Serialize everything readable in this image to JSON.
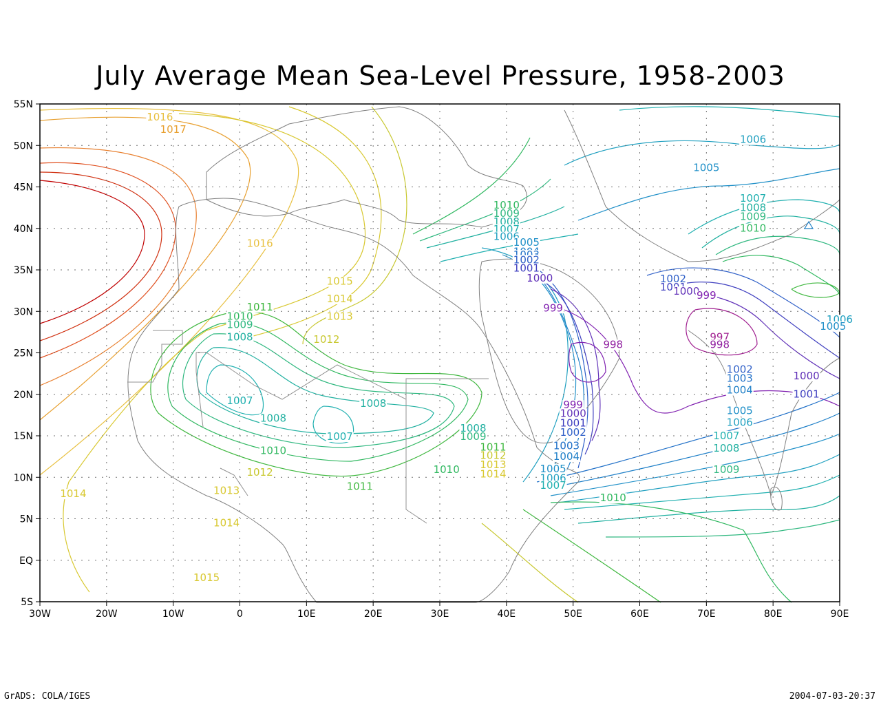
{
  "title": "July Average Mean Sea-Level Pressure, 1958-2003",
  "footer": {
    "left": "GrADS: COLA/IGES",
    "right": "2004-07-03-20:37"
  },
  "chart_data": {
    "type": "contour",
    "xlim": [
      -30,
      90
    ],
    "ylim": [
      -5,
      55
    ],
    "xticks": [
      "30W",
      "20W",
      "10W",
      "0",
      "10E",
      "20E",
      "30E",
      "40E",
      "50E",
      "60E",
      "70E",
      "80E",
      "90E"
    ],
    "xtick_values": [
      -30,
      -20,
      -10,
      0,
      10,
      20,
      30,
      40,
      50,
      60,
      70,
      80,
      90
    ],
    "yticks": [
      "5S",
      "EQ",
      "5N",
      "10N",
      "15N",
      "20N",
      "25N",
      "30N",
      "35N",
      "40N",
      "45N",
      "50N",
      "55N"
    ],
    "ytick_values": [
      -5,
      0,
      5,
      10,
      15,
      20,
      25,
      30,
      35,
      40,
      45,
      50,
      55
    ],
    "grid": true,
    "contours": [
      {
        "label": "1016",
        "lon": -12,
        "lat": 53,
        "color": "#e8c040"
      },
      {
        "label": "1017",
        "lon": -10,
        "lat": 51.5,
        "color": "#e8a030"
      },
      {
        "label": "1016",
        "lon": 3,
        "lat": 37.8,
        "color": "#e8c040"
      },
      {
        "label": "1015",
        "lon": 15,
        "lat": 33.2,
        "color": "#d8c830"
      },
      {
        "label": "1014",
        "lon": 15,
        "lat": 31.1,
        "color": "#d8c830"
      },
      {
        "label": "1013",
        "lon": 15,
        "lat": 29,
        "color": "#d8c830"
      },
      {
        "label": "1012",
        "lon": 13,
        "lat": 26.2,
        "color": "#c8c830"
      },
      {
        "label": "1011",
        "lon": 3,
        "lat": 30.1,
        "color": "#40b840"
      },
      {
        "label": "1010",
        "lon": 0,
        "lat": 29,
        "color": "#30b860"
      },
      {
        "label": "1009",
        "lon": 0,
        "lat": 28,
        "color": "#30b880"
      },
      {
        "label": "1008",
        "lon": 0,
        "lat": 26.5,
        "color": "#20b0a0"
      },
      {
        "label": "1007",
        "lon": 0,
        "lat": 18.8,
        "color": "#20b0b0"
      },
      {
        "label": "1008",
        "lon": 5,
        "lat": 16.7,
        "color": "#20b0a0"
      },
      {
        "label": "1008",
        "lon": 20,
        "lat": 18.5,
        "color": "#20b0a0"
      },
      {
        "label": "1007",
        "lon": 15,
        "lat": 14.5,
        "color": "#20b0b0"
      },
      {
        "label": "1010",
        "lon": 5,
        "lat": 12.8,
        "color": "#30b860"
      },
      {
        "label": "1012",
        "lon": 3,
        "lat": 10.2,
        "color": "#c8c830"
      },
      {
        "label": "1013",
        "lon": -2,
        "lat": 8,
        "color": "#d8c830"
      },
      {
        "label": "1014",
        "lon": -2,
        "lat": 4.1,
        "color": "#d8c830"
      },
      {
        "label": "1014",
        "lon": -25,
        "lat": 7.6,
        "color": "#d8c830"
      },
      {
        "label": "1015",
        "lon": -5,
        "lat": -2.5,
        "color": "#d8c830"
      },
      {
        "label": "1011",
        "lon": 18,
        "lat": 8.5,
        "color": "#40b840"
      },
      {
        "label": "1010",
        "lon": 31,
        "lat": 10.5,
        "color": "#30b860"
      },
      {
        "label": "1008",
        "lon": 35,
        "lat": 15.5,
        "color": "#20b0a0"
      },
      {
        "label": "1009",
        "lon": 35,
        "lat": 14.5,
        "color": "#30b880"
      },
      {
        "label": "1011",
        "lon": 38,
        "lat": 13.2,
        "color": "#40b840"
      },
      {
        "label": "1012",
        "lon": 38,
        "lat": 12.2,
        "color": "#c8c830"
      },
      {
        "label": "1013",
        "lon": 38,
        "lat": 11.1,
        "color": "#d8c830"
      },
      {
        "label": "1014",
        "lon": 38,
        "lat": 10,
        "color": "#d8c830"
      },
      {
        "label": "1010",
        "lon": 40,
        "lat": 42.4,
        "color": "#30b860"
      },
      {
        "label": "1009",
        "lon": 40,
        "lat": 41.4,
        "color": "#30b880"
      },
      {
        "label": "1008",
        "lon": 40,
        "lat": 40.4,
        "color": "#20b0a0"
      },
      {
        "label": "1007",
        "lon": 40,
        "lat": 39.5,
        "color": "#20b0b0"
      },
      {
        "label": "1006",
        "lon": 40,
        "lat": 38.6,
        "color": "#20a0c0"
      },
      {
        "label": "1005",
        "lon": 43,
        "lat": 37.9,
        "color": "#2090c8"
      },
      {
        "label": "1004",
        "lon": 43,
        "lat": 36.8,
        "color": "#2080c8"
      },
      {
        "label": "1003",
        "lon": 43,
        "lat": 36.4,
        "color": "#2070c8"
      },
      {
        "label": "1002",
        "lon": 43,
        "lat": 35.8,
        "color": "#3060c8"
      },
      {
        "label": "1001",
        "lon": 43,
        "lat": 34.8,
        "color": "#4040c0"
      },
      {
        "label": "1000",
        "lon": 45,
        "lat": 33.6,
        "color": "#6030b8"
      },
      {
        "label": "999",
        "lon": 47,
        "lat": 30,
        "color": "#8020b0"
      },
      {
        "label": "998",
        "lon": 56,
        "lat": 25.6,
        "color": "#9020a0"
      },
      {
        "label": "999",
        "lon": 50,
        "lat": 18.3,
        "color": "#8020b0"
      },
      {
        "label": "1000",
        "lon": 50,
        "lat": 17.3,
        "color": "#6030b8"
      },
      {
        "label": "1001",
        "lon": 50,
        "lat": 16.1,
        "color": "#4040c0"
      },
      {
        "label": "1002",
        "lon": 50,
        "lat": 15,
        "color": "#3060c8"
      },
      {
        "label": "1003",
        "lon": 49,
        "lat": 13.4,
        "color": "#2070c8"
      },
      {
        "label": "1004",
        "lon": 49,
        "lat": 12.1,
        "color": "#2080c8"
      },
      {
        "label": "1005",
        "lon": 47,
        "lat": 10.6,
        "color": "#2090c8"
      },
      {
        "label": "1006",
        "lon": 47,
        "lat": 9.5,
        "color": "#20a0c0"
      },
      {
        "label": "1007",
        "lon": 47,
        "lat": 8.6,
        "color": "#20b0b0"
      },
      {
        "label": "1010",
        "lon": 56,
        "lat": 7.1,
        "color": "#30b860"
      },
      {
        "label": "1002",
        "lon": 65,
        "lat": 33.5,
        "color": "#3060c8"
      },
      {
        "label": "1001",
        "lon": 65,
        "lat": 32.5,
        "color": "#4040c0"
      },
      {
        "label": "1000",
        "lon": 67,
        "lat": 32,
        "color": "#6030b8"
      },
      {
        "label": "999",
        "lon": 70,
        "lat": 31.5,
        "color": "#8020b0"
      },
      {
        "label": "997",
        "lon": 72,
        "lat": 26.5,
        "color": "#a02090"
      },
      {
        "label": "998",
        "lon": 72,
        "lat": 25.6,
        "color": "#9020a0"
      },
      {
        "label": "1002",
        "lon": 75,
        "lat": 22.6,
        "color": "#3060c8"
      },
      {
        "label": "1003",
        "lon": 75,
        "lat": 21.5,
        "color": "#2070c8"
      },
      {
        "label": "1004",
        "lon": 75,
        "lat": 20.1,
        "color": "#2080c8"
      },
      {
        "label": "1005",
        "lon": 75,
        "lat": 17.6,
        "color": "#2090c8"
      },
      {
        "label": "1006",
        "lon": 75,
        "lat": 16.2,
        "color": "#20a0c0"
      },
      {
        "label": "1007",
        "lon": 73,
        "lat": 14.6,
        "color": "#20b0b0"
      },
      {
        "label": "1008",
        "lon": 73,
        "lat": 13.1,
        "color": "#20b0a0"
      },
      {
        "label": "1009",
        "lon": 73,
        "lat": 10.5,
        "color": "#30b880"
      },
      {
        "label": "1000",
        "lon": 85,
        "lat": 21.8,
        "color": "#6030b8"
      },
      {
        "label": "1001",
        "lon": 85,
        "lat": 19.6,
        "color": "#4040c0"
      },
      {
        "label": "1006",
        "lon": 90,
        "lat": 28.6,
        "color": "#20a0c0"
      },
      {
        "label": "1005",
        "lon": 89,
        "lat": 27.8,
        "color": "#2090c8"
      },
      {
        "label": "1006",
        "lon": 77,
        "lat": 50.3,
        "color": "#20a0c0"
      },
      {
        "label": "1005",
        "lon": 70,
        "lat": 46.9,
        "color": "#2090c8"
      },
      {
        "label": "1007",
        "lon": 77,
        "lat": 43.2,
        "color": "#20b0b0"
      },
      {
        "label": "1008",
        "lon": 77,
        "lat": 42.1,
        "color": "#20b0a0"
      },
      {
        "label": "1009",
        "lon": 77,
        "lat": 41,
        "color": "#30b880"
      },
      {
        "label": "1010",
        "lon": 77,
        "lat": 39.6,
        "color": "#30b860"
      }
    ]
  }
}
